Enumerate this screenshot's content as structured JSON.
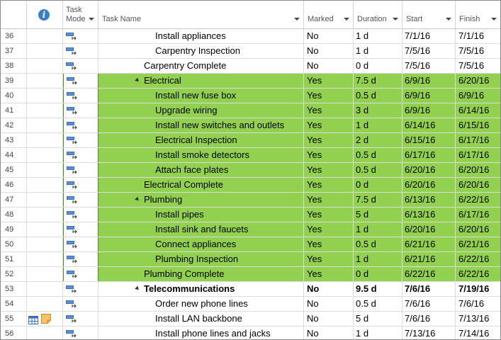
{
  "columns": {
    "task_mode": "Task Mode",
    "task_name": "Task Name",
    "marked": "Marked",
    "duration": "Duration",
    "start": "Start",
    "finish": "Finish"
  },
  "rows": [
    {
      "id": "36",
      "name": "Install appliances",
      "level": 3,
      "marked": "No",
      "duration": "1 d",
      "start": "7/1/16",
      "finish": "7/1/16",
      "highlight": false,
      "bold": false,
      "summary": false
    },
    {
      "id": "37",
      "name": "Carpentry Inspection",
      "level": 3,
      "marked": "No",
      "duration": "1 d",
      "start": "7/5/16",
      "finish": "7/5/16",
      "highlight": false,
      "bold": false,
      "summary": false
    },
    {
      "id": "38",
      "name": "Carpentry Complete",
      "level": 2,
      "marked": "No",
      "duration": "0 d",
      "start": "7/5/16",
      "finish": "7/5/16",
      "highlight": false,
      "bold": false,
      "summary": false
    },
    {
      "id": "39",
      "name": "Electrical",
      "level": 2,
      "marked": "Yes",
      "duration": "7.5 d",
      "start": "6/9/16",
      "finish": "6/20/16",
      "highlight": true,
      "bold": false,
      "summary": true
    },
    {
      "id": "40",
      "name": "Install new fuse box",
      "level": 3,
      "marked": "Yes",
      "duration": "0.5 d",
      "start": "6/9/16",
      "finish": "6/9/16",
      "highlight": true,
      "bold": false,
      "summary": false
    },
    {
      "id": "41",
      "name": "Upgrade wiring",
      "level": 3,
      "marked": "Yes",
      "duration": "3 d",
      "start": "6/9/16",
      "finish": "6/14/16",
      "highlight": true,
      "bold": false,
      "summary": false
    },
    {
      "id": "42",
      "name": "Install new switches and outlets",
      "level": 3,
      "marked": "Yes",
      "duration": "1 d",
      "start": "6/14/16",
      "finish": "6/15/16",
      "highlight": true,
      "bold": false,
      "summary": false
    },
    {
      "id": "43",
      "name": "Electrical Inspection",
      "level": 3,
      "marked": "Yes",
      "duration": "2 d",
      "start": "6/15/16",
      "finish": "6/17/16",
      "highlight": true,
      "bold": false,
      "summary": false
    },
    {
      "id": "44",
      "name": "Install smoke detectors",
      "level": 3,
      "marked": "Yes",
      "duration": "0.5 d",
      "start": "6/17/16",
      "finish": "6/17/16",
      "highlight": true,
      "bold": false,
      "summary": false
    },
    {
      "id": "45",
      "name": "Attach face plates",
      "level": 3,
      "marked": "Yes",
      "duration": "0.5 d",
      "start": "6/20/16",
      "finish": "6/20/16",
      "highlight": true,
      "bold": false,
      "summary": false
    },
    {
      "id": "46",
      "name": "Electrical Complete",
      "level": 2,
      "marked": "Yes",
      "duration": "0 d",
      "start": "6/20/16",
      "finish": "6/20/16",
      "highlight": true,
      "bold": false,
      "summary": false
    },
    {
      "id": "47",
      "name": "Plumbing",
      "level": 2,
      "marked": "Yes",
      "duration": "7.5 d",
      "start": "6/13/16",
      "finish": "6/22/16",
      "highlight": true,
      "bold": false,
      "summary": true
    },
    {
      "id": "48",
      "name": "Install pipes",
      "level": 3,
      "marked": "Yes",
      "duration": "5 d",
      "start": "6/13/16",
      "finish": "6/17/16",
      "highlight": true,
      "bold": false,
      "summary": false
    },
    {
      "id": "49",
      "name": "Install sink and faucets",
      "level": 3,
      "marked": "Yes",
      "duration": "1 d",
      "start": "6/20/16",
      "finish": "6/20/16",
      "highlight": true,
      "bold": false,
      "summary": false
    },
    {
      "id": "50",
      "name": "Connect appliances",
      "level": 3,
      "marked": "Yes",
      "duration": "0.5 d",
      "start": "6/21/16",
      "finish": "6/21/16",
      "highlight": true,
      "bold": false,
      "summary": false
    },
    {
      "id": "51",
      "name": "Plumbing Inspection",
      "level": 3,
      "marked": "Yes",
      "duration": "1 d",
      "start": "6/21/16",
      "finish": "6/22/16",
      "highlight": true,
      "bold": false,
      "summary": false
    },
    {
      "id": "52",
      "name": "Plumbing Complete",
      "level": 2,
      "marked": "Yes",
      "duration": "0 d",
      "start": "6/22/16",
      "finish": "6/22/16",
      "highlight": true,
      "bold": false,
      "summary": false
    },
    {
      "id": "53",
      "name": "Telecommunications",
      "level": 2,
      "marked": "No",
      "duration": "9.5 d",
      "start": "7/6/16",
      "finish": "7/19/16",
      "highlight": false,
      "bold": true,
      "summary": true
    },
    {
      "id": "54",
      "name": "Order new phone lines",
      "level": 3,
      "marked": "No",
      "duration": "0.5 d",
      "start": "7/6/16",
      "finish": "7/6/16",
      "highlight": false,
      "bold": false,
      "summary": false
    },
    {
      "id": "55",
      "name": "Install LAN backbone",
      "level": 3,
      "marked": "No",
      "duration": "5 d",
      "start": "7/6/16",
      "finish": "7/13/16",
      "highlight": false,
      "bold": false,
      "summary": false,
      "indicators": [
        "table-icon",
        "note-icon"
      ]
    },
    {
      "id": "56",
      "name": "Install phone lines and jacks",
      "level": 3,
      "marked": "No",
      "duration": "1 d",
      "start": "7/13/16",
      "finish": "7/14/16",
      "highlight": false,
      "bold": false,
      "summary": false
    }
  ],
  "colors": {
    "highlight": "#92d050",
    "header_text": "#555555",
    "info_icon": "#3a7ec3"
  }
}
